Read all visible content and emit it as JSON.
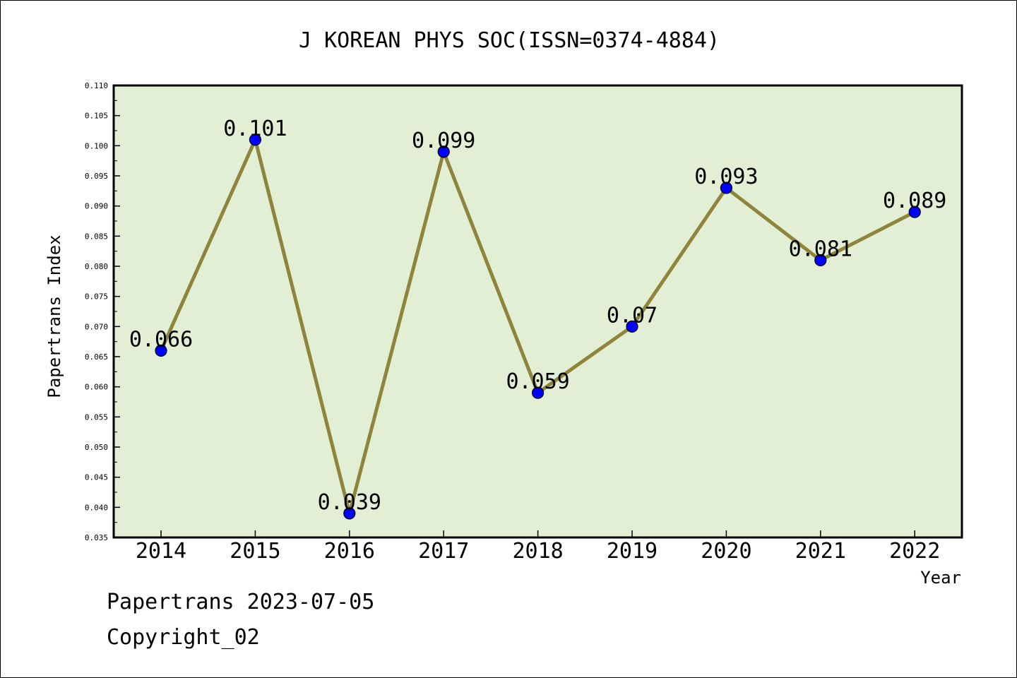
{
  "chart_data": {
    "type": "line",
    "title": "J KOREAN PHYS SOC(ISSN=0374-4884)",
    "xlabel": "Year",
    "ylabel": "Papertrans Index",
    "categories": [
      "2014",
      "2015",
      "2016",
      "2017",
      "2018",
      "2019",
      "2020",
      "2021",
      "2022"
    ],
    "series": [
      {
        "values": [
          0.066,
          0.101,
          0.039,
          0.099,
          0.059,
          0.07,
          0.093,
          0.081,
          0.089
        ],
        "labels": [
          "0.066",
          "0.101",
          "0.039",
          "0.099",
          "0.059",
          "0.07",
          "0.093",
          "0.081",
          "0.089"
        ]
      }
    ],
    "ylim": [
      0.035,
      0.11
    ],
    "yticks": [
      "0.035",
      "0.040",
      "0.045",
      "0.050",
      "0.055",
      "0.060",
      "0.065",
      "0.070",
      "0.075",
      "0.080",
      "0.085",
      "0.090",
      "0.095",
      "0.100",
      "0.105",
      "0.110"
    ],
    "grid": false,
    "colors": {
      "plot_background": "#e2efd5",
      "line": "#8f843b",
      "marker": "#0000ff",
      "frame": "#000000"
    }
  },
  "footer": {
    "date_line": "Papertrans 2023-07-05",
    "copyright": "Copyright_02"
  }
}
